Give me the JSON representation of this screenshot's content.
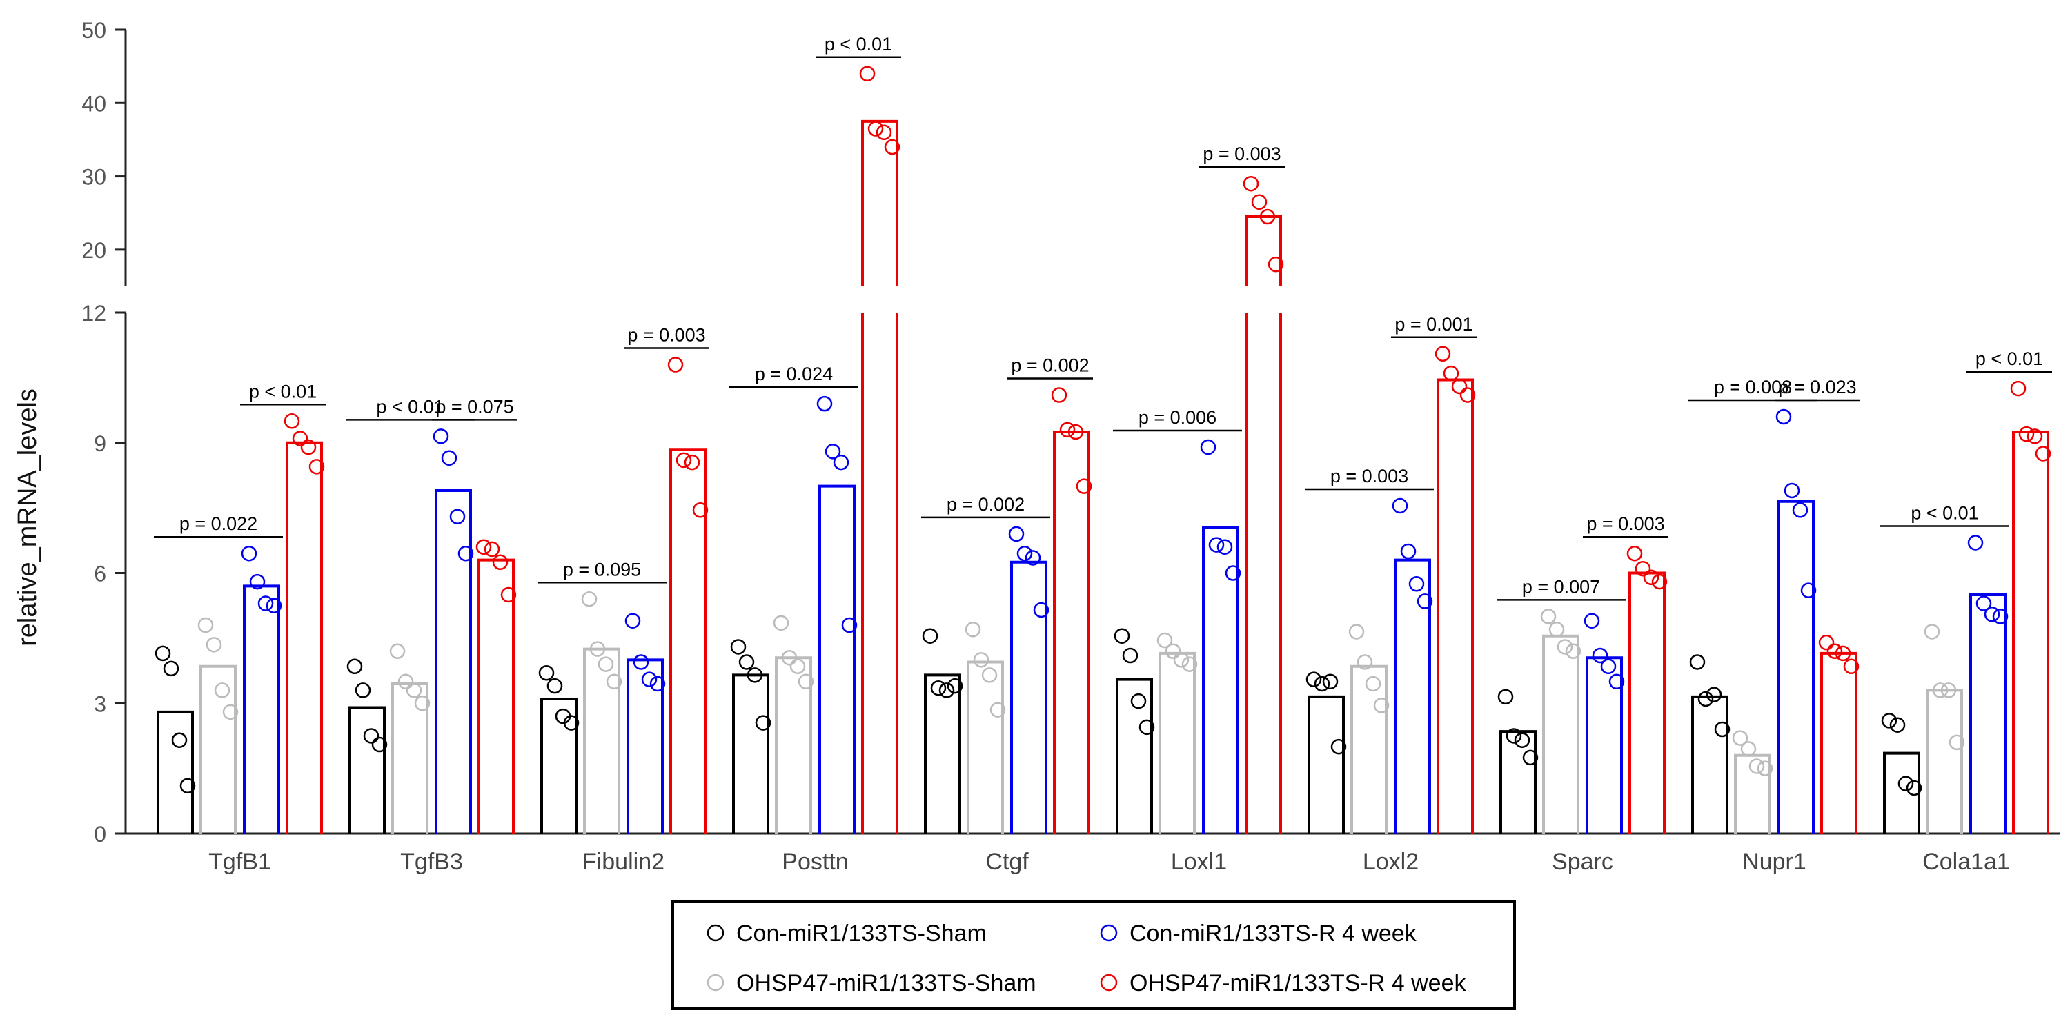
{
  "chart_data": {
    "type": "bar",
    "title": "",
    "xlabel": "",
    "ylabel": "relative_mRNA_levels",
    "y_axis": {
      "broken": true,
      "lower_range": [
        0,
        12
      ],
      "upper_range": [
        15,
        50
      ],
      "lower_ticks": [
        0,
        3,
        6,
        9,
        12
      ],
      "upper_ticks": [
        20,
        30,
        40,
        50
      ]
    },
    "grid": false,
    "legend_placement": "bottom-center",
    "categories": [
      "TgfB1",
      "TgfB3",
      "Fibulin2",
      "Posttn",
      "Ctgf",
      "Loxl1",
      "Loxl2",
      "Sparc",
      "Nupr1",
      "Cola1a1"
    ],
    "series": [
      {
        "name": "Con-miR1/133TS-Sham",
        "color": "#000000",
        "values": [
          2.8,
          2.9,
          3.1,
          3.65,
          3.65,
          3.55,
          3.15,
          2.35,
          3.15,
          1.85
        ],
        "points": [
          [
            4.15,
            3.8,
            2.15,
            1.1
          ],
          [
            3.85,
            3.3,
            2.25,
            2.05
          ],
          [
            3.7,
            3.4,
            2.7,
            2.55
          ],
          [
            4.3,
            3.95,
            3.65,
            2.55
          ],
          [
            4.55,
            3.35,
            3.3,
            3.4
          ],
          [
            4.55,
            4.1,
            3.05,
            2.45
          ],
          [
            3.55,
            3.45,
            3.5,
            2.0
          ],
          [
            3.15,
            2.25,
            2.15,
            1.75
          ],
          [
            3.95,
            3.1,
            3.2,
            2.4
          ],
          [
            2.6,
            2.5,
            1.15,
            1.05
          ]
        ]
      },
      {
        "name": "OHSP47-miR1/133TS-Sham",
        "color": "#bbbbbb",
        "values": [
          3.85,
          3.45,
          4.25,
          4.05,
          3.95,
          4.15,
          3.85,
          4.55,
          1.8,
          3.3
        ],
        "points": [
          [
            4.8,
            4.35,
            3.3,
            2.8
          ],
          [
            4.2,
            3.5,
            3.3,
            3.0
          ],
          [
            5.4,
            4.25,
            3.9,
            3.5
          ],
          [
            4.85,
            4.05,
            3.85,
            3.5
          ],
          [
            4.7,
            4.0,
            3.65,
            2.85
          ],
          [
            4.45,
            4.2,
            4.0,
            3.9
          ],
          [
            4.65,
            3.95,
            3.45,
            2.95
          ],
          [
            5.0,
            4.7,
            4.3,
            4.2
          ],
          [
            2.2,
            1.95,
            1.55,
            1.5
          ],
          [
            4.65,
            3.3,
            3.3,
            2.1
          ]
        ]
      },
      {
        "name": "Con-miR1/133TS-R 4 week",
        "color": "#0000ee",
        "values": [
          5.7,
          7.9,
          4.0,
          8.0,
          6.25,
          7.05,
          6.3,
          4.05,
          7.65,
          5.5
        ],
        "points": [
          [
            6.45,
            5.8,
            5.3,
            5.25
          ],
          [
            9.15,
            8.65,
            7.3,
            6.45
          ],
          [
            4.9,
            3.95,
            3.55,
            3.45
          ],
          [
            9.9,
            8.8,
            8.55,
            4.8
          ],
          [
            6.9,
            6.45,
            6.35,
            5.15
          ],
          [
            8.9,
            6.65,
            6.6,
            6.0
          ],
          [
            7.55,
            6.5,
            5.75,
            5.35
          ],
          [
            4.9,
            4.1,
            3.85,
            3.5
          ],
          [
            9.6,
            7.9,
            7.45,
            5.6
          ],
          [
            6.7,
            5.3,
            5.05,
            5.0
          ]
        ]
      },
      {
        "name": "OHSP47-miR1/133TS-R 4 week",
        "color": "#ee0000",
        "values": [
          9.0,
          6.3,
          8.85,
          37.5,
          9.25,
          24.5,
          10.45,
          6.0,
          4.15,
          9.25
        ],
        "points": [
          [
            9.5,
            9.1,
            8.9,
            8.45
          ],
          [
            6.6,
            6.55,
            6.25,
            5.5
          ],
          [
            10.8,
            8.6,
            8.55,
            7.45
          ],
          [
            44.0,
            36.5,
            36.0,
            34.0
          ],
          [
            10.1,
            9.3,
            9.25,
            8.0
          ],
          [
            29.0,
            26.5,
            24.5,
            18.0
          ],
          [
            11.05,
            10.6,
            10.3,
            10.1
          ],
          [
            6.45,
            6.1,
            5.9,
            5.8
          ],
          [
            4.4,
            4.2,
            4.15,
            3.85
          ],
          [
            10.25,
            9.2,
            9.15,
            8.75
          ]
        ]
      }
    ],
    "annotations": [
      {
        "category": "TgfB1",
        "from": 0,
        "to": 2,
        "label": "p = 0.022"
      },
      {
        "category": "TgfB1",
        "from": 2,
        "to": 3,
        "label": "p < 0.01"
      },
      {
        "category": "TgfB3",
        "from": 0,
        "to": 2,
        "label": "p < 0.01"
      },
      {
        "category": "TgfB3",
        "from": 2,
        "to": 3,
        "label": "p = 0.075"
      },
      {
        "category": "Fibulin2",
        "from": 0,
        "to": 2,
        "label": "p = 0.095"
      },
      {
        "category": "Fibulin2",
        "from": 2,
        "to": 3,
        "label": "p = 0.003"
      },
      {
        "category": "Posttn",
        "from": 0,
        "to": 2,
        "label": "p = 0.024"
      },
      {
        "category": "Posttn",
        "from": 2,
        "to": 3,
        "label": "p < 0.01"
      },
      {
        "category": "Ctgf",
        "from": 0,
        "to": 2,
        "label": "p = 0.002"
      },
      {
        "category": "Ctgf",
        "from": 2,
        "to": 3,
        "label": "p = 0.002"
      },
      {
        "category": "Loxl1",
        "from": 0,
        "to": 2,
        "label": "p = 0.006"
      },
      {
        "category": "Loxl1",
        "from": 2,
        "to": 3,
        "label": "p = 0.003"
      },
      {
        "category": "Loxl2",
        "from": 0,
        "to": 2,
        "label": "p = 0.003"
      },
      {
        "category": "Loxl2",
        "from": 2,
        "to": 3,
        "label": "p = 0.001"
      },
      {
        "category": "Sparc",
        "from": 0,
        "to": 2,
        "label": "p = 0.007"
      },
      {
        "category": "Sparc",
        "from": 2,
        "to": 3,
        "label": "p = 0.003"
      },
      {
        "category": "Nupr1",
        "from": 0,
        "to": 2,
        "label": "p = 0.008"
      },
      {
        "category": "Nupr1",
        "from": 2,
        "to": 3,
        "label": "p = 0.023"
      },
      {
        "category": "Cola1a1",
        "from": 0,
        "to": 2,
        "label": "p < 0.01"
      },
      {
        "category": "Cola1a1",
        "from": 2,
        "to": 3,
        "label": "p < 0.01"
      }
    ],
    "legend": [
      "Con-miR1/133TS-Sham",
      "Con-miR1/133TS-R 4 week",
      "OHSP47-miR1/133TS-Sham",
      "OHSP47-miR1/133TS-R 4 week"
    ]
  }
}
